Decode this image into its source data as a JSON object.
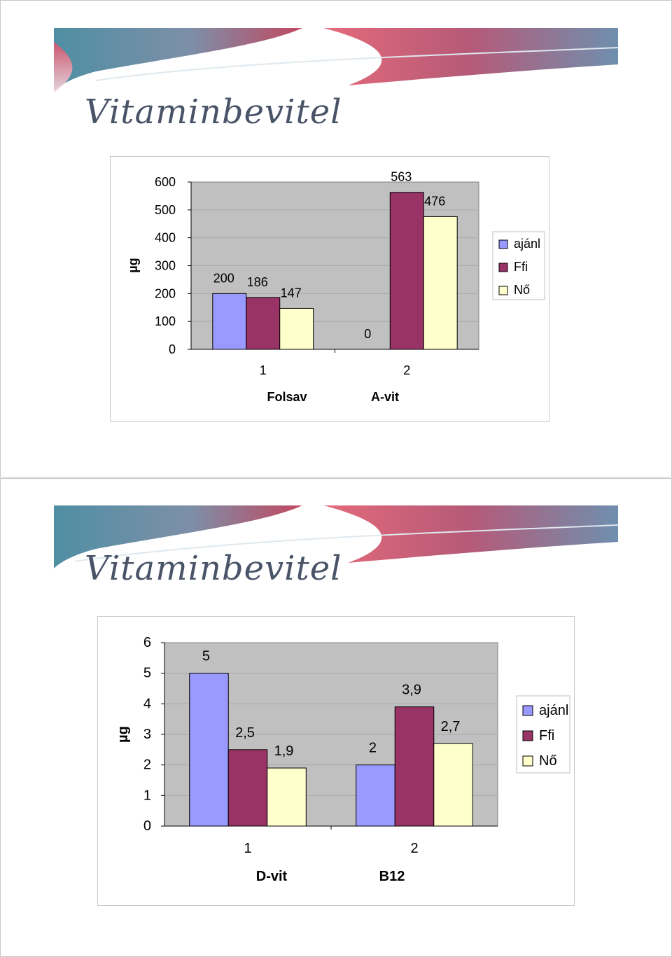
{
  "slides": [
    {
      "title": "Vitaminbevitel"
    },
    {
      "title": "Vitaminbevitel"
    }
  ],
  "chart_data": [
    {
      "type": "bar",
      "title": "",
      "ylabel": "µg",
      "xlabel": "",
      "ylim": [
        0,
        600
      ],
      "y_ticks": [
        "0",
        "100",
        "200",
        "300",
        "400",
        "500",
        "600"
      ],
      "x": [
        "1",
        "2"
      ],
      "categories": [
        "Folsav",
        "A-vit"
      ],
      "series": [
        {
          "name": "ajánl",
          "color": "#9999ff",
          "values": [
            200,
            0
          ],
          "labels": [
            "200",
            "0"
          ]
        },
        {
          "name": "Ffi",
          "color": "#993366",
          "values": [
            186,
            563
          ],
          "labels": [
            "186",
            "563"
          ]
        },
        {
          "name": "Nő",
          "color": "#ffffcc",
          "values": [
            147,
            476
          ],
          "labels": [
            "147",
            "476"
          ]
        }
      ],
      "plot_background": "#c0c0c0",
      "grid": true,
      "legend_position": "right"
    },
    {
      "type": "bar",
      "title": "",
      "ylabel": "µg",
      "xlabel": "",
      "ylim": [
        0,
        6
      ],
      "y_ticks": [
        "0",
        "1",
        "2",
        "3",
        "4",
        "5",
        "6"
      ],
      "x": [
        "1",
        "2"
      ],
      "categories": [
        "D-vit",
        "B12"
      ],
      "series": [
        {
          "name": "ajánl",
          "color": "#9999ff",
          "values": [
            5,
            2
          ],
          "labels": [
            "5",
            "2"
          ]
        },
        {
          "name": "Ffi",
          "color": "#993366",
          "values": [
            2.5,
            3.9
          ],
          "labels": [
            "2,5",
            "3,9"
          ]
        },
        {
          "name": "Nő",
          "color": "#ffffcc",
          "values": [
            1.9,
            2.7
          ],
          "labels": [
            "1,9",
            "2,7"
          ]
        }
      ],
      "plot_background": "#c0c0c0",
      "grid": true,
      "legend_position": "right"
    }
  ]
}
